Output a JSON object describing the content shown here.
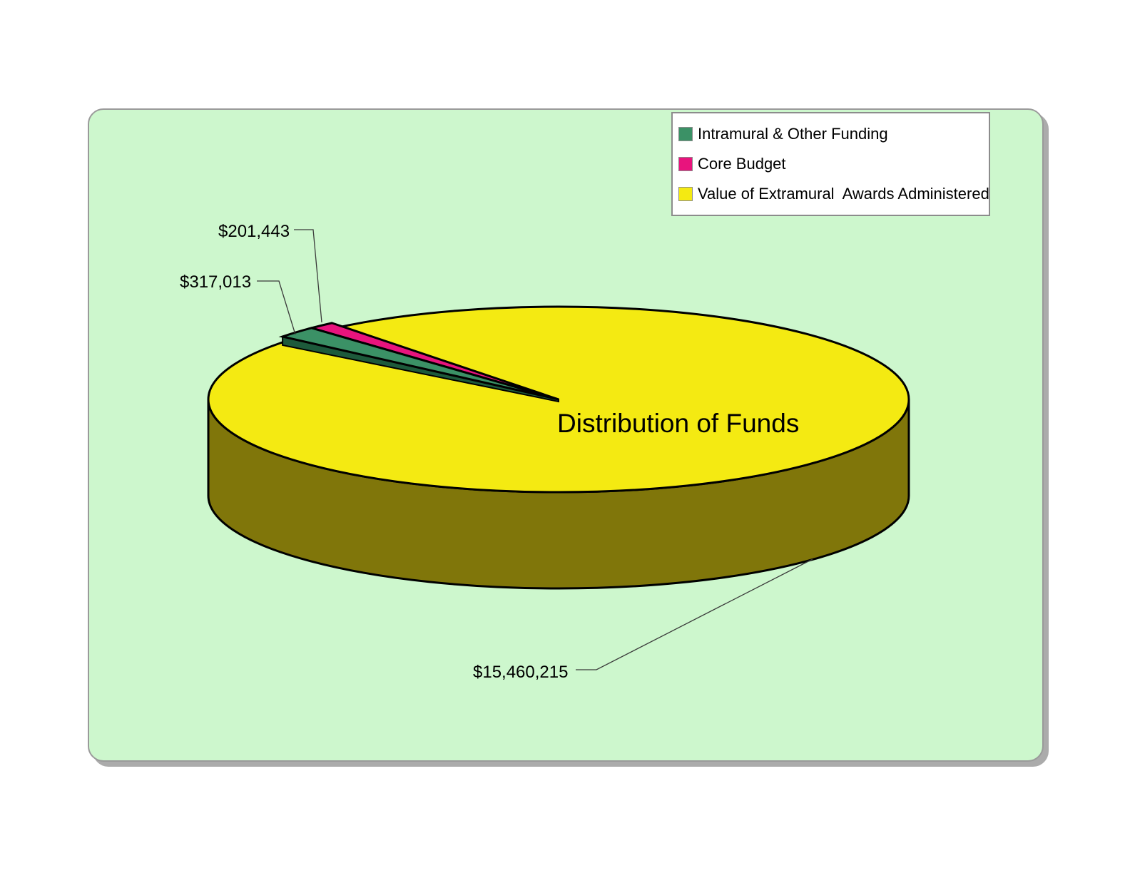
{
  "chart_data": {
    "type": "pie",
    "title": "Distribution of Funds",
    "legend_position": "top-right",
    "series": [
      {
        "name": "Intramural & Other Funding",
        "value": 317013,
        "label": "$317,013",
        "color": "#3b9166",
        "dark_color": "#1d5a3b",
        "lifted": true
      },
      {
        "name": "Core Budget",
        "value": 201443,
        "label": "$201,443",
        "color": "#e8147d",
        "dark_color": "#8f0c4e",
        "lifted": true
      },
      {
        "name": "Value of Extramural  Awards Administered",
        "value": 15460215,
        "label": "$15,460,215",
        "color": "#f4ea12",
        "dark_color": "#80760a",
        "lifted": false
      }
    ]
  },
  "colors": {
    "panel_bg": "#cdf7cd",
    "panel_border": "#9a9a9a",
    "panel_shadow": "#ababab",
    "legend_bg": "#ffffff",
    "legend_border": "#8c8c8c",
    "outline": "#000000",
    "leader_line": "#3a3a3a"
  }
}
